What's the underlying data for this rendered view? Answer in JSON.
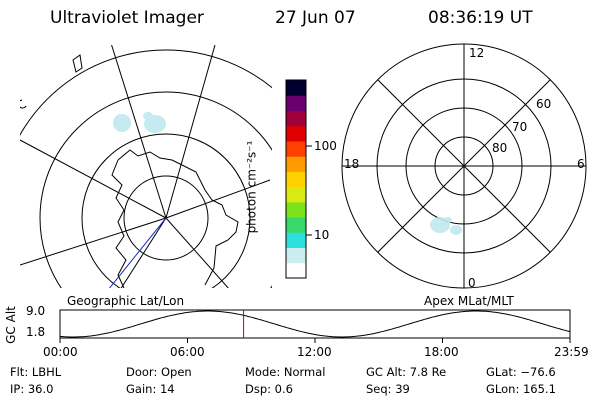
{
  "header": {
    "instrument": "Ultraviolet Imager",
    "date": "27 Jun 07",
    "time": "08:36:19 UT"
  },
  "geo_plot": {
    "label": "Geographic Lat/Lon"
  },
  "apex_plot": {
    "label": "Apex MLat/MLT",
    "mlt_labels": {
      "top": "12",
      "left": "18",
      "right": "6",
      "bottom": "0"
    },
    "lat_labels": [
      "60",
      "70",
      "80"
    ]
  },
  "colorbar": {
    "unit_label": "photon cm⁻²s⁻¹",
    "tick_100": "100",
    "tick_10": "10",
    "colors": [
      "#ffffff",
      "#cdeef0",
      "#2ee0dc",
      "#38d86a",
      "#7ce21c",
      "#d8ea12",
      "#ffd000",
      "#ff9a00",
      "#ff4000",
      "#e00000",
      "#a0003c",
      "#6a0070",
      "#000030"
    ]
  },
  "altitude_plot": {
    "axis_label": "GC Alt",
    "y_max": "9.0",
    "y_min": "1.8",
    "x_ticks": [
      "00:00",
      "06:00",
      "12:00",
      "18:00",
      "23:59"
    ],
    "current_time_fraction": 0.36,
    "marker_color": "#cc0000"
  },
  "status": {
    "filter": "Flt: LBHL",
    "ip": "IP: 36.0",
    "door": "Door: Open",
    "gain": "Gain: 14",
    "mode": "Mode: Normal",
    "dsp": "Dsp:    0.6",
    "gc_alt": "GC Alt: 7.8 Re",
    "seq": "Seq: 39",
    "glat": "GLat: −76.6",
    "glon": "GLon: 165.1"
  }
}
